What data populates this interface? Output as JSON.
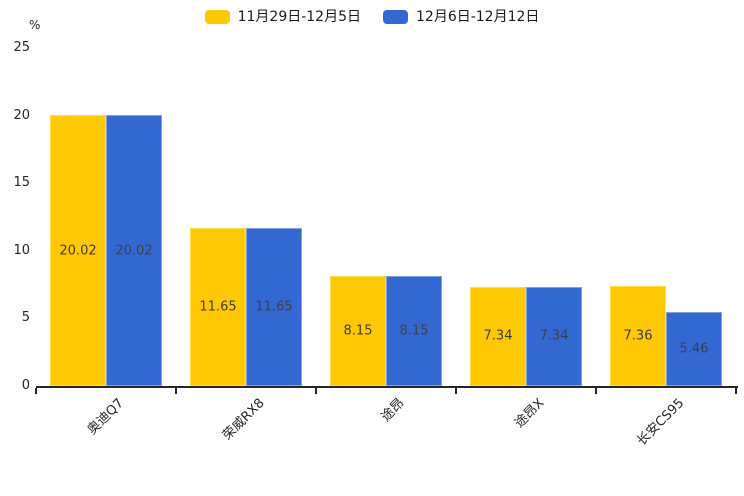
{
  "chart_data": {
    "type": "bar",
    "title": "",
    "unit_label": "%",
    "categories": [
      "奥迪Q7",
      "荣威RX8",
      "途昂",
      "途昂X",
      "长安CS95"
    ],
    "series": [
      {
        "name": "11月29日-12月5日",
        "color": "#FFC805",
        "border_color": "#FFD94E",
        "values": [
          20.02,
          11.65,
          8.15,
          7.34,
          7.36
        ]
      },
      {
        "name": "12月6日-12月12日",
        "color": "#3368D2",
        "border_color": "#7FA0E3",
        "values": [
          20.02,
          11.65,
          8.15,
          7.34,
          5.46
        ]
      }
    ],
    "ylim": [
      0,
      25
    ],
    "yticks": [
      0,
      5,
      10,
      15,
      20,
      25
    ],
    "value_labels": "inside-center",
    "legend_position": "top-center",
    "grid": false,
    "colors": {
      "axis": "#262626",
      "value_label": "#3f3f3f",
      "background": "#ffffff"
    }
  }
}
